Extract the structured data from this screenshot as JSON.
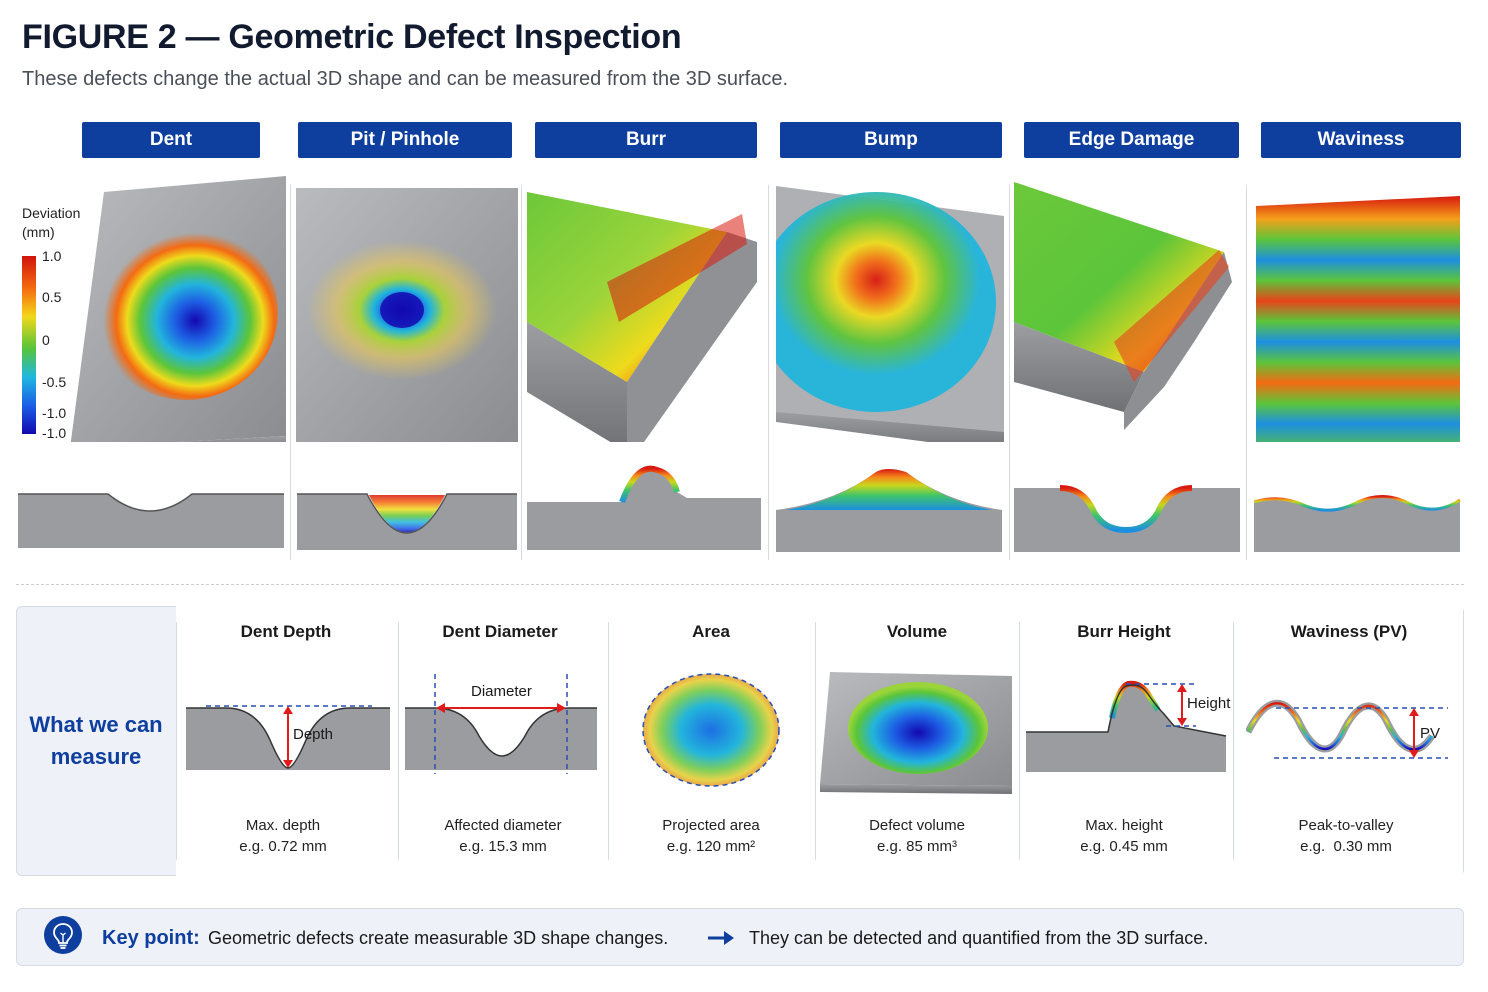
{
  "title": "FIGURE 2 — Geometric Defect Inspection",
  "subtitle": "These defects change the actual 3D shape and can be measured from the 3D surface.",
  "defects": [
    {
      "label": "Dent"
    },
    {
      "label": "Pit / Pinhole"
    },
    {
      "label": "Burr"
    },
    {
      "label": "Bump"
    },
    {
      "label": "Edge Damage"
    },
    {
      "label": "Waviness"
    }
  ],
  "legend": {
    "title_line1": "Deviation",
    "title_line2": "(mm)",
    "ticks": [
      "1.0",
      "0.5",
      "0",
      "-0.5",
      "-1.0",
      "-1.0"
    ]
  },
  "measure": {
    "label_line1": "What we can",
    "label_line2": "measure",
    "items": [
      {
        "title": "Dent Depth",
        "annotation": "Depth",
        "desc1": "Max. depth",
        "desc2": "e.g. 0.72 mm"
      },
      {
        "title": "Dent Diameter",
        "annotation": "Diameter",
        "desc1": "Affected diameter",
        "desc2": "e.g. 15.3 mm"
      },
      {
        "title": "Area",
        "desc1": "Projected area",
        "desc2": "e.g. 120 mm²"
      },
      {
        "title": "Volume",
        "desc1": "Defect volume",
        "desc2": "e.g. 85 mm³"
      },
      {
        "title": "Burr Height",
        "annotation": "Height",
        "desc1": "Max. height",
        "desc2": "e.g. 0.45 mm"
      },
      {
        "title": "Waviness (PV)",
        "annotation": "PV",
        "desc1": "Peak-to-valley",
        "desc2": "e.g.  0.30 mm"
      }
    ]
  },
  "keypoint": {
    "label": "Key point:",
    "text1": "Geometric defects create measurable 3D shape changes.",
    "text2": "They can be detected and quantified from the 3D surface."
  },
  "colors": {
    "header_blue": "#0e3e9e",
    "metal_gray": "#9a9ca0",
    "annotation_red": "#e01b1b",
    "dashed_blue": "#2a4fb0"
  },
  "icons": [
    "lightbulb-icon",
    "arrow-right-icon"
  ]
}
